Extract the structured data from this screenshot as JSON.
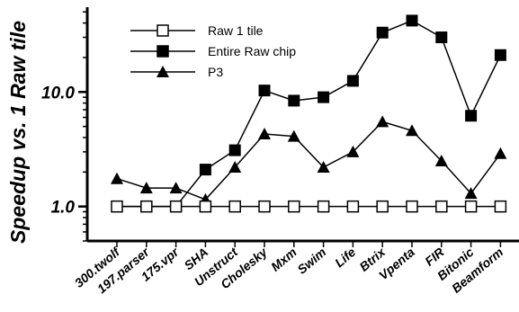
{
  "chart_data": {
    "type": "line",
    "ylabel": "Speedup vs. 1 Raw tile",
    "xlabel": "",
    "title": "",
    "y_scale": "log",
    "ylim": [
      0.5,
      55
    ],
    "y_ticks": [
      1.0,
      10.0
    ],
    "y_tick_labels": [
      "1.0",
      "10.0"
    ],
    "legend_position": "top-left",
    "grid": false,
    "categories": [
      "300.twolf",
      "197.parser",
      "175.vpr",
      "SHA",
      "Unstruct",
      "Cholesky",
      "Mxm",
      "Swim",
      "Life",
      "Btrix",
      "Vpenta",
      "FIR",
      "Bitonic",
      "Beamform"
    ],
    "series": [
      {
        "name": "Raw 1 tile",
        "marker": "open-square",
        "values": [
          1.0,
          1.0,
          1.0,
          1.0,
          1.0,
          1.0,
          1.0,
          1.0,
          1.0,
          1.0,
          1.0,
          1.0,
          1.0,
          1.0
        ]
      },
      {
        "name": "Entire Raw chip",
        "marker": "filled-square",
        "values": [
          1.0,
          1.0,
          1.0,
          2.1,
          3.1,
          10.3,
          8.4,
          9.0,
          12.5,
          33.0,
          42.0,
          30.0,
          6.2,
          21.0
        ]
      },
      {
        "name": "P3",
        "marker": "filled-triangle",
        "values": [
          1.75,
          1.45,
          1.45,
          1.15,
          2.2,
          4.3,
          4.1,
          2.2,
          3.0,
          5.5,
          4.6,
          2.5,
          1.3,
          2.9
        ]
      }
    ]
  }
}
